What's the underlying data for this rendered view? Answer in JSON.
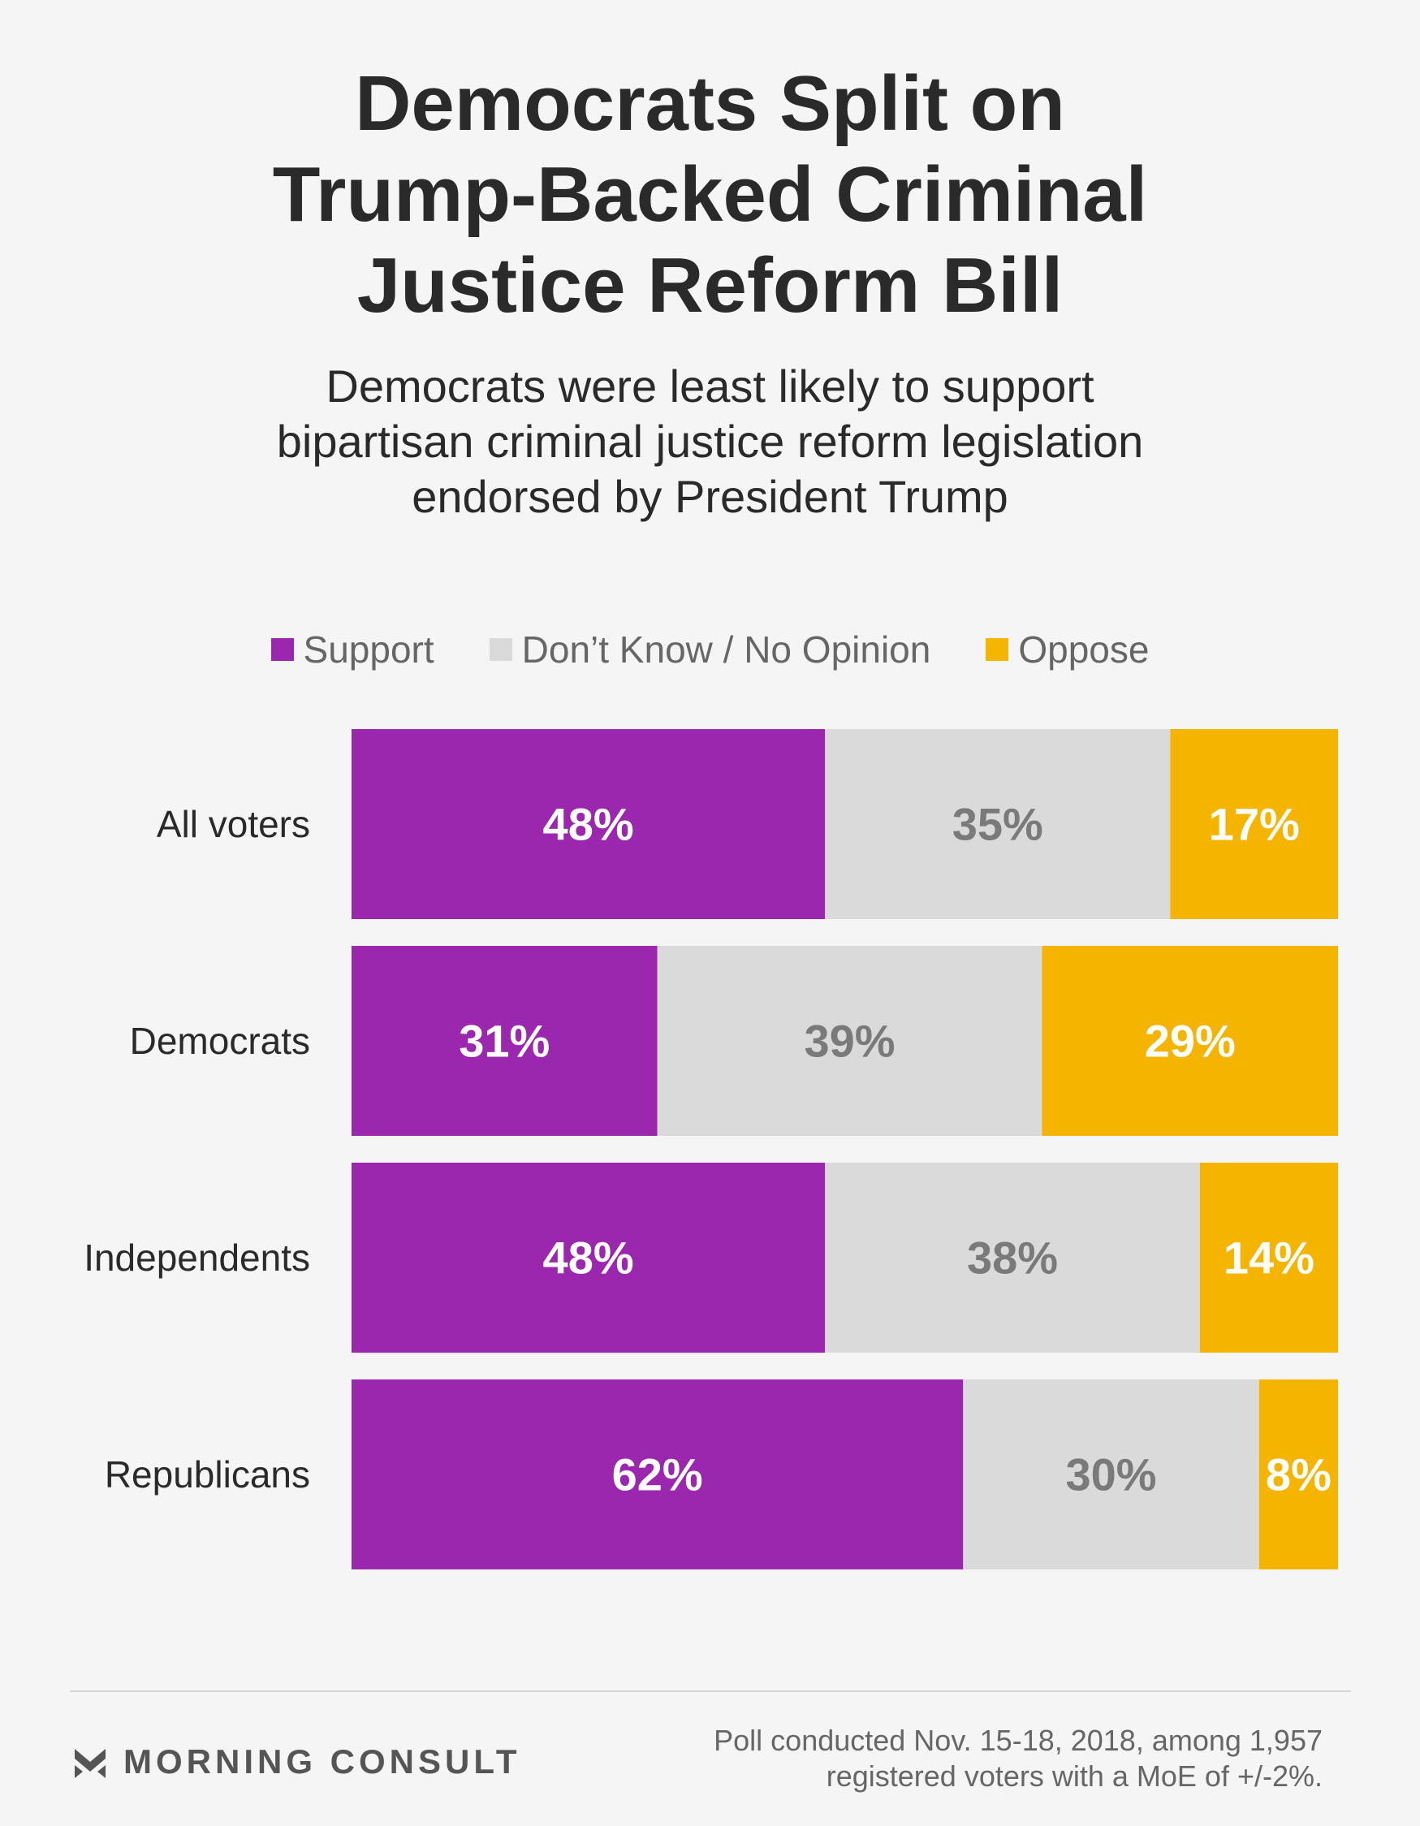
{
  "chart_data": {
    "type": "bar",
    "orientation": "horizontal-stacked",
    "title_lines": [
      "Democrats Split on",
      "Trump-Backed Criminal",
      "Justice Reform Bill"
    ],
    "subtitle_lines": [
      "Democrats were least likely to support",
      "bipartisan criminal justice reform legislation",
      "endorsed by President Trump"
    ],
    "categories": [
      "All voters",
      "Democrats",
      "Independents",
      "Republicans"
    ],
    "series": [
      {
        "name": "Support",
        "color": "#9b27af",
        "label_color": "#ffffff",
        "values": [
          48,
          31,
          48,
          62
        ],
        "labels": [
          "48%",
          "31%",
          "48%",
          "62%"
        ]
      },
      {
        "name": "Don’t Know / No Opinion",
        "color": "#dadada",
        "label_color": "#7a7a7a",
        "values": [
          35,
          39,
          38,
          30
        ],
        "labels": [
          "35%",
          "39%",
          "38%",
          "30%"
        ]
      },
      {
        "name": "Oppose",
        "color": "#f5b400",
        "label_color": "#ffffff",
        "values": [
          17,
          29,
          14,
          8
        ],
        "labels": [
          "17%",
          "29%",
          "14%",
          "8%"
        ]
      }
    ],
    "xlim": [
      0,
      100
    ],
    "legend_position": "top",
    "grid": false
  },
  "footer": {
    "brand": "MORNING CONSULT",
    "note_lines": [
      "Poll conducted Nov. 15-18, 2018, among 1,957",
      "registered voters with a MoE of +/-2%."
    ]
  }
}
